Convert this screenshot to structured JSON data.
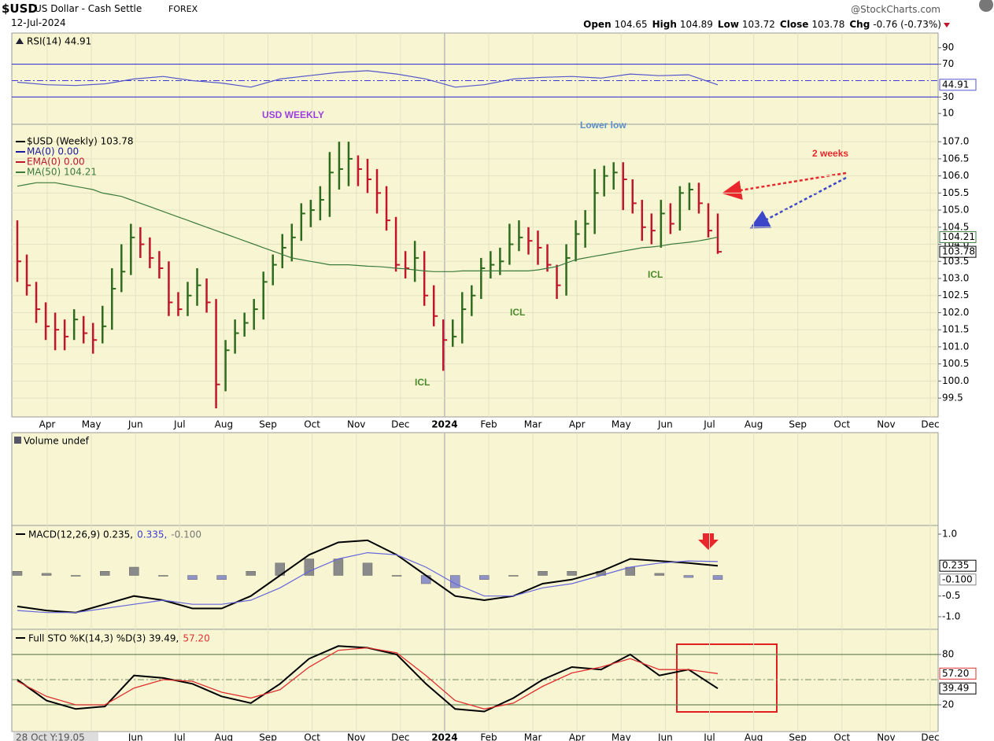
{
  "header": {
    "symbol": "$USD",
    "name": "US Dollar - Cash Settle",
    "exchange": "FOREX",
    "date": "12-Jul-2024",
    "source": "@StockCharts.com",
    "quote": [
      {
        "label": "Open",
        "value": 104.65
      },
      {
        "label": "High",
        "value": 104.89
      },
      {
        "label": "Low",
        "value": 103.72
      },
      {
        "label": "Close",
        "value": 103.78
      },
      {
        "label": "Chg",
        "value": "-0.76 (-0.73%)"
      }
    ]
  },
  "annotations": [
    {
      "text": "USD WEEKLY",
      "color": "#9b3de0"
    },
    {
      "text": "Lower low",
      "color": "#5b8fc8"
    },
    {
      "text": "2 weeks",
      "color": "#e8262b"
    },
    {
      "text": "ICL",
      "color": "#4a8a2a"
    },
    {
      "text": "ICL",
      "color": "#4a8a2a"
    },
    {
      "text": "ICL",
      "color": "#4a8a2a"
    }
  ],
  "time_axis": {
    "top": [
      "Apr",
      "May",
      "Jun",
      "Jul",
      "Aug",
      "Sep",
      "Oct",
      "Nov",
      "Dec",
      "2024",
      "Feb",
      "Mar",
      "Apr",
      "May",
      "Jun",
      "Jul",
      "Aug",
      "Sep",
      "Oct",
      "Nov",
      "Dec"
    ],
    "bottom": [
      "28 Oct Y:19.05",
      "Jun",
      "Jul",
      "Aug",
      "Sep",
      "Oct",
      "Nov",
      "Dec",
      "2024",
      "Feb",
      "Mar",
      "Apr",
      "May",
      "Jun",
      "Jul",
      "Aug",
      "Sep",
      "Oct",
      "Nov",
      "Dec"
    ]
  },
  "chart_data": [
    {
      "type": "line",
      "legend": "RSI(14) 44.91",
      "color": "#5555cc",
      "ylim": [
        -3.2,
        107.9
      ],
      "yticks": [
        10,
        30,
        70,
        90
      ],
      "levels": [
        30,
        70
      ],
      "midline": 50,
      "values": [
        48,
        45,
        44,
        46,
        52,
        55,
        50,
        47,
        42,
        52,
        56,
        60,
        62,
        58,
        52,
        42,
        45,
        52,
        54,
        55,
        53,
        58,
        56,
        57,
        44.91
      ]
    },
    {
      "type": "ohlc",
      "legend": [
        {
          "text": "$USD (Weekly) 103.78",
          "color": "#000000"
        },
        {
          "text": "MA(0) 0.00",
          "color": "#1a1aa0"
        },
        {
          "text": "EMA(0) 0.00",
          "color": "#c0152a"
        }
      ],
      "up_color": "#2e6b1e",
      "down_color": "#c0152a",
      "grid": true,
      "ylim": [
        98.95,
        107.51
      ],
      "yticks": [
        99.5,
        {
          "value": 100,
          "label": "100.0"
        },
        100.5,
        {
          "value": 101,
          "label": "101.0"
        },
        101.5,
        {
          "value": 102,
          "label": "102.0"
        },
        102.5,
        {
          "value": 103,
          "label": "103.0"
        },
        103.5,
        {
          "value": 104,
          "label": "104.0"
        },
        104.5,
        {
          "value": 105,
          "label": "105.0"
        },
        105.5,
        {
          "value": 106,
          "label": "106.0"
        },
        106.5,
        {
          "value": 107,
          "label": "107.0"
        }
      ],
      "high": [
        104.7,
        103.7,
        102.9,
        102.3,
        102.0,
        101.8,
        102.1,
        101.9,
        101.7,
        102.2,
        103.3,
        104.0,
        104.6,
        104.5,
        104.2,
        103.8,
        103.5,
        102.6,
        102.9,
        103.3,
        103.0,
        102.4,
        101.2,
        101.8,
        102.0,
        102.4,
        103.2,
        103.7,
        104.3,
        104.6,
        105.2,
        105.3,
        105.7,
        106.7,
        107.0,
        107.0,
        106.6,
        106.5,
        106.2,
        105.7,
        104.8,
        103.8,
        104.1,
        103.8,
        102.8,
        101.8,
        101.8,
        102.6,
        102.8,
        103.6,
        103.8,
        103.9,
        104.6,
        104.7,
        104.5,
        104.4,
        104.0,
        103.4,
        104.0,
        104.7,
        105.0,
        106.2,
        106.3,
        106.4,
        106.4,
        105.9,
        105.3,
        104.9,
        105.3,
        105.2,
        105.7,
        105.8,
        105.8,
        105.2,
        104.9
      ],
      "low": [
        102.9,
        102.5,
        101.7,
        101.2,
        100.9,
        100.9,
        101.2,
        101.1,
        100.8,
        101.1,
        101.5,
        102.6,
        103.1,
        103.6,
        103.3,
        103.0,
        101.9,
        101.9,
        101.9,
        102.2,
        102.0,
        99.2,
        99.7,
        100.8,
        101.3,
        101.5,
        101.8,
        102.8,
        103.3,
        103.5,
        104.1,
        104.5,
        104.7,
        104.8,
        105.6,
        105.7,
        105.7,
        105.5,
        104.9,
        104.4,
        103.2,
        103.0,
        102.9,
        102.2,
        101.6,
        100.3,
        101.0,
        101.1,
        101.9,
        102.4,
        103.0,
        103.1,
        103.4,
        103.8,
        103.7,
        103.4,
        103.2,
        102.4,
        102.5,
        103.5,
        103.9,
        104.3,
        105.4,
        105.6,
        105.0,
        104.9,
        104.1,
        104.0,
        103.9,
        104.3,
        104.4,
        105.0,
        104.9,
        104.2,
        103.72
      ],
      "close": [
        103.5,
        102.8,
        102.1,
        101.6,
        101.5,
        101.3,
        101.8,
        101.4,
        101.2,
        101.6,
        102.7,
        103.2,
        104.2,
        104.0,
        103.6,
        103.3,
        102.3,
        102.1,
        102.5,
        102.8,
        102.3,
        99.9,
        100.9,
        101.4,
        101.7,
        102.1,
        102.9,
        103.4,
        103.9,
        104.2,
        104.9,
        105.0,
        105.3,
        106.1,
        106.2,
        106.5,
        106.2,
        105.9,
        105.5,
        104.7,
        103.4,
        103.3,
        103.6,
        102.5,
        101.9,
        101.2,
        101.3,
        102.1,
        102.5,
        103.3,
        103.4,
        103.5,
        104.0,
        104.2,
        104.1,
        103.9,
        103.4,
        102.8,
        103.6,
        104.3,
        104.6,
        105.5,
        106.0,
        106.1,
        105.9,
        105.2,
        104.5,
        104.4,
        104.9,
        104.6,
        105.5,
        105.6,
        105.2,
        104.4,
        103.78
      ],
      "series": [
        {
          "name": "MA(50) 104.21",
          "color": "#3c7a3c",
          "values": [
            105.7,
            105.75,
            105.8,
            105.8,
            105.8,
            105.75,
            105.7,
            105.65,
            105.6,
            105.5,
            105.45,
            105.4,
            105.3,
            105.2,
            105.1,
            105.0,
            104.9,
            104.8,
            104.7,
            104.6,
            104.5,
            104.4,
            104.3,
            104.2,
            104.1,
            104.0,
            103.9,
            103.8,
            103.7,
            103.6,
            103.55,
            103.5,
            103.45,
            103.4,
            103.4,
            103.4,
            103.38,
            103.36,
            103.35,
            103.33,
            103.3,
            103.28,
            103.25,
            103.22,
            103.2,
            103.2,
            103.2,
            103.22,
            103.22,
            103.22,
            103.22,
            103.22,
            103.22,
            103.22,
            103.22,
            103.25,
            103.3,
            103.35,
            103.45,
            103.55,
            103.6,
            103.65,
            103.7,
            103.75,
            103.8,
            103.85,
            103.9,
            103.92,
            103.95,
            104.0,
            104.03,
            104.06,
            104.1,
            104.15,
            104.21
          ]
        }
      ]
    },
    {
      "type": "volume",
      "legend": "Volume undef"
    },
    {
      "type": "macd",
      "legend_parts": [
        {
          "text": "MACD(12,26,9) 0.235,",
          "color": "#000000"
        },
        {
          "text": "0.335,",
          "color": "#3b3bd0"
        },
        {
          "text": "-0.100",
          "color": "#777777"
        }
      ],
      "ylim": [
        -1.305,
        1.21
      ],
      "yticks": [
        {
          "value": -1,
          "label": "-1.0"
        },
        -0.5,
        {
          "value": 1,
          "label": "1.0"
        }
      ],
      "series": [
        {
          "name": "MACD",
          "color": "#000000",
          "values": [
            -0.75,
            -0.85,
            -0.9,
            -0.7,
            -0.5,
            -0.6,
            -0.8,
            -0.8,
            -0.5,
            0.0,
            0.5,
            0.8,
            0.85,
            0.5,
            0.0,
            -0.5,
            -0.6,
            -0.5,
            -0.2,
            -0.1,
            0.1,
            0.4,
            0.35,
            0.3,
            0.235
          ]
        },
        {
          "name": "Signal",
          "color": "#6666dd",
          "values": [
            -0.85,
            -0.9,
            -0.9,
            -0.8,
            -0.7,
            -0.6,
            -0.7,
            -0.7,
            -0.6,
            -0.3,
            0.1,
            0.4,
            0.55,
            0.5,
            0.2,
            -0.2,
            -0.5,
            -0.5,
            -0.3,
            -0.2,
            0.0,
            0.2,
            0.3,
            0.35,
            0.335
          ]
        }
      ],
      "histogram": {
        "up_color": "#8a8a8a",
        "down_color": "#8f93c8",
        "values": [
          0.1,
          0.05,
          0,
          0.1,
          0.2,
          0,
          -0.1,
          -0.1,
          0.1,
          0.3,
          0.4,
          0.4,
          0.3,
          0,
          -0.2,
          -0.3,
          -0.1,
          0,
          0.1,
          0.1,
          0.1,
          0.2,
          0.05,
          -0.05,
          -0.1
        ],
        "last_value_label": "-0.100"
      }
    },
    {
      "type": "line",
      "legend_parts": [
        {
          "text": "Full STO %K(14,3) %D(3) 39.49,",
          "color": "#000000"
        },
        {
          "text": "57.20",
          "color": "#e03030"
        }
      ],
      "ylim": [
        -11.9,
        110
      ],
      "yticks": [
        20,
        80
      ],
      "levels": [
        20,
        80
      ],
      "midline": 50,
      "series": [
        {
          "name": "%K",
          "color": "#000000",
          "values": [
            50,
            25,
            15,
            18,
            55,
            52,
            45,
            30,
            22,
            45,
            75,
            90,
            88,
            80,
            45,
            15,
            12,
            28,
            50,
            65,
            62,
            80,
            55,
            62,
            39.49
          ]
        },
        {
          "name": "%D",
          "color": "#e03030",
          "values": [
            48,
            30,
            20,
            20,
            40,
            50,
            48,
            35,
            28,
            38,
            65,
            85,
            88,
            82,
            55,
            25,
            15,
            22,
            42,
            58,
            65,
            75,
            62,
            62,
            57.2
          ],
          "last_value_label": "57.20"
        }
      ]
    }
  ]
}
